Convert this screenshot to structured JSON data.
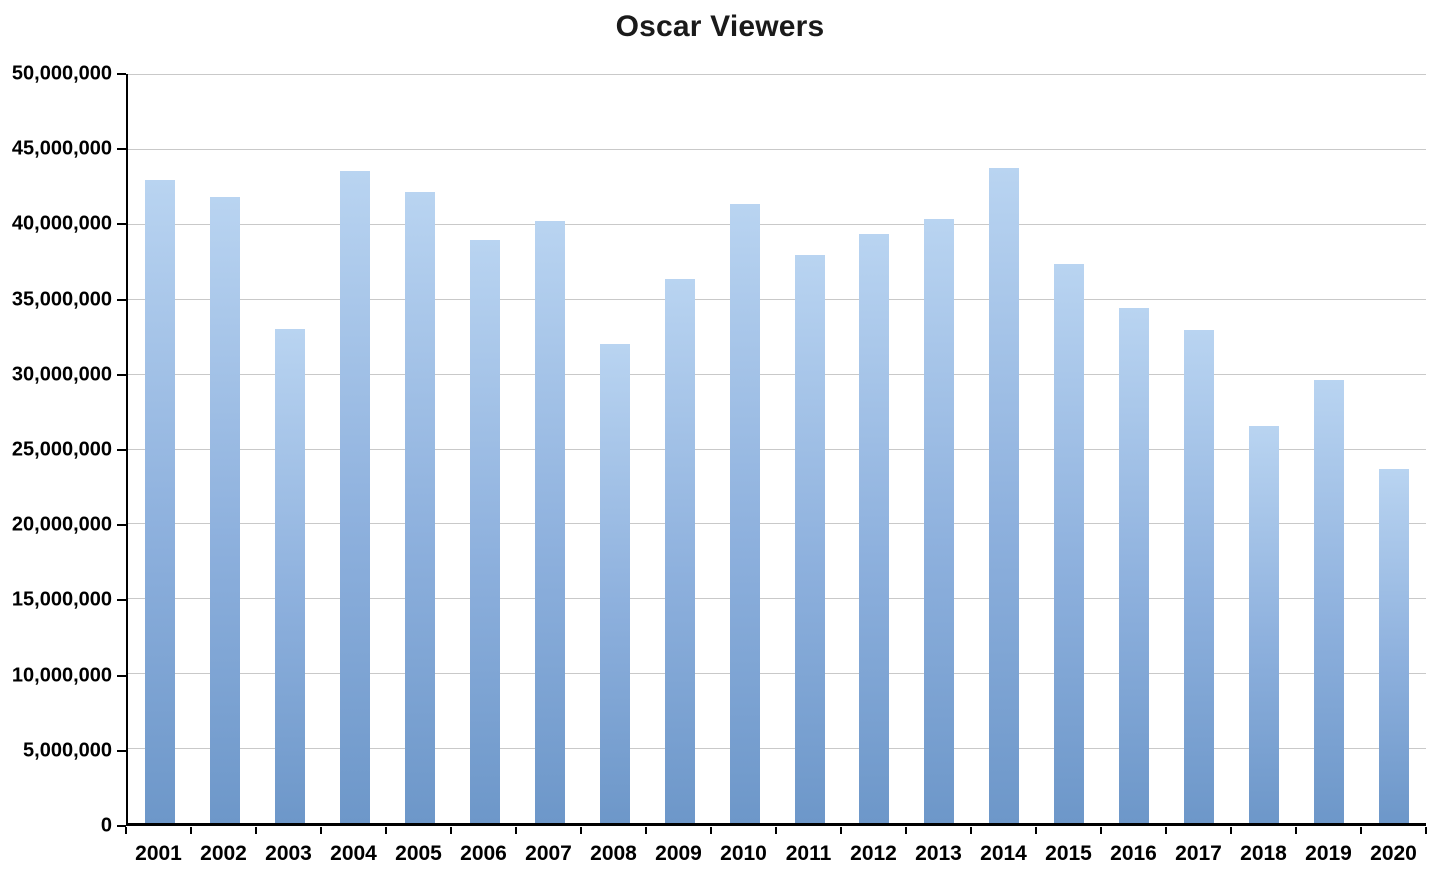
{
  "chart_data": {
    "type": "bar",
    "title": "Oscar Viewers",
    "categories": [
      "2001",
      "2002",
      "2003",
      "2004",
      "2005",
      "2006",
      "2007",
      "2008",
      "2009",
      "2010",
      "2011",
      "2012",
      "2013",
      "2014",
      "2015",
      "2016",
      "2017",
      "2018",
      "2019",
      "2020"
    ],
    "values": [
      42900000,
      41800000,
      33000000,
      43500000,
      42100000,
      38900000,
      40200000,
      32000000,
      36300000,
      41300000,
      37900000,
      39300000,
      40300000,
      43700000,
      37300000,
      34400000,
      32900000,
      26500000,
      29600000,
      23600000
    ],
    "xlabel": "",
    "ylabel": "",
    "ylim": [
      0,
      50000000
    ],
    "ytick_interval": 5000000,
    "ytick_labels": [
      "0",
      "5,000,000",
      "10,000,000",
      "15,000,000",
      "20,000,000",
      "25,000,000",
      "30,000,000",
      "35,000,000",
      "40,000,000",
      "45,000,000",
      "50,000,000"
    ],
    "grid": true,
    "legend": "none",
    "bar_color_top": "#b9d4f1",
    "bar_color_bottom": "#6d97c9",
    "gridline_color": "#c9c9c9",
    "axis_color": "#000000"
  }
}
